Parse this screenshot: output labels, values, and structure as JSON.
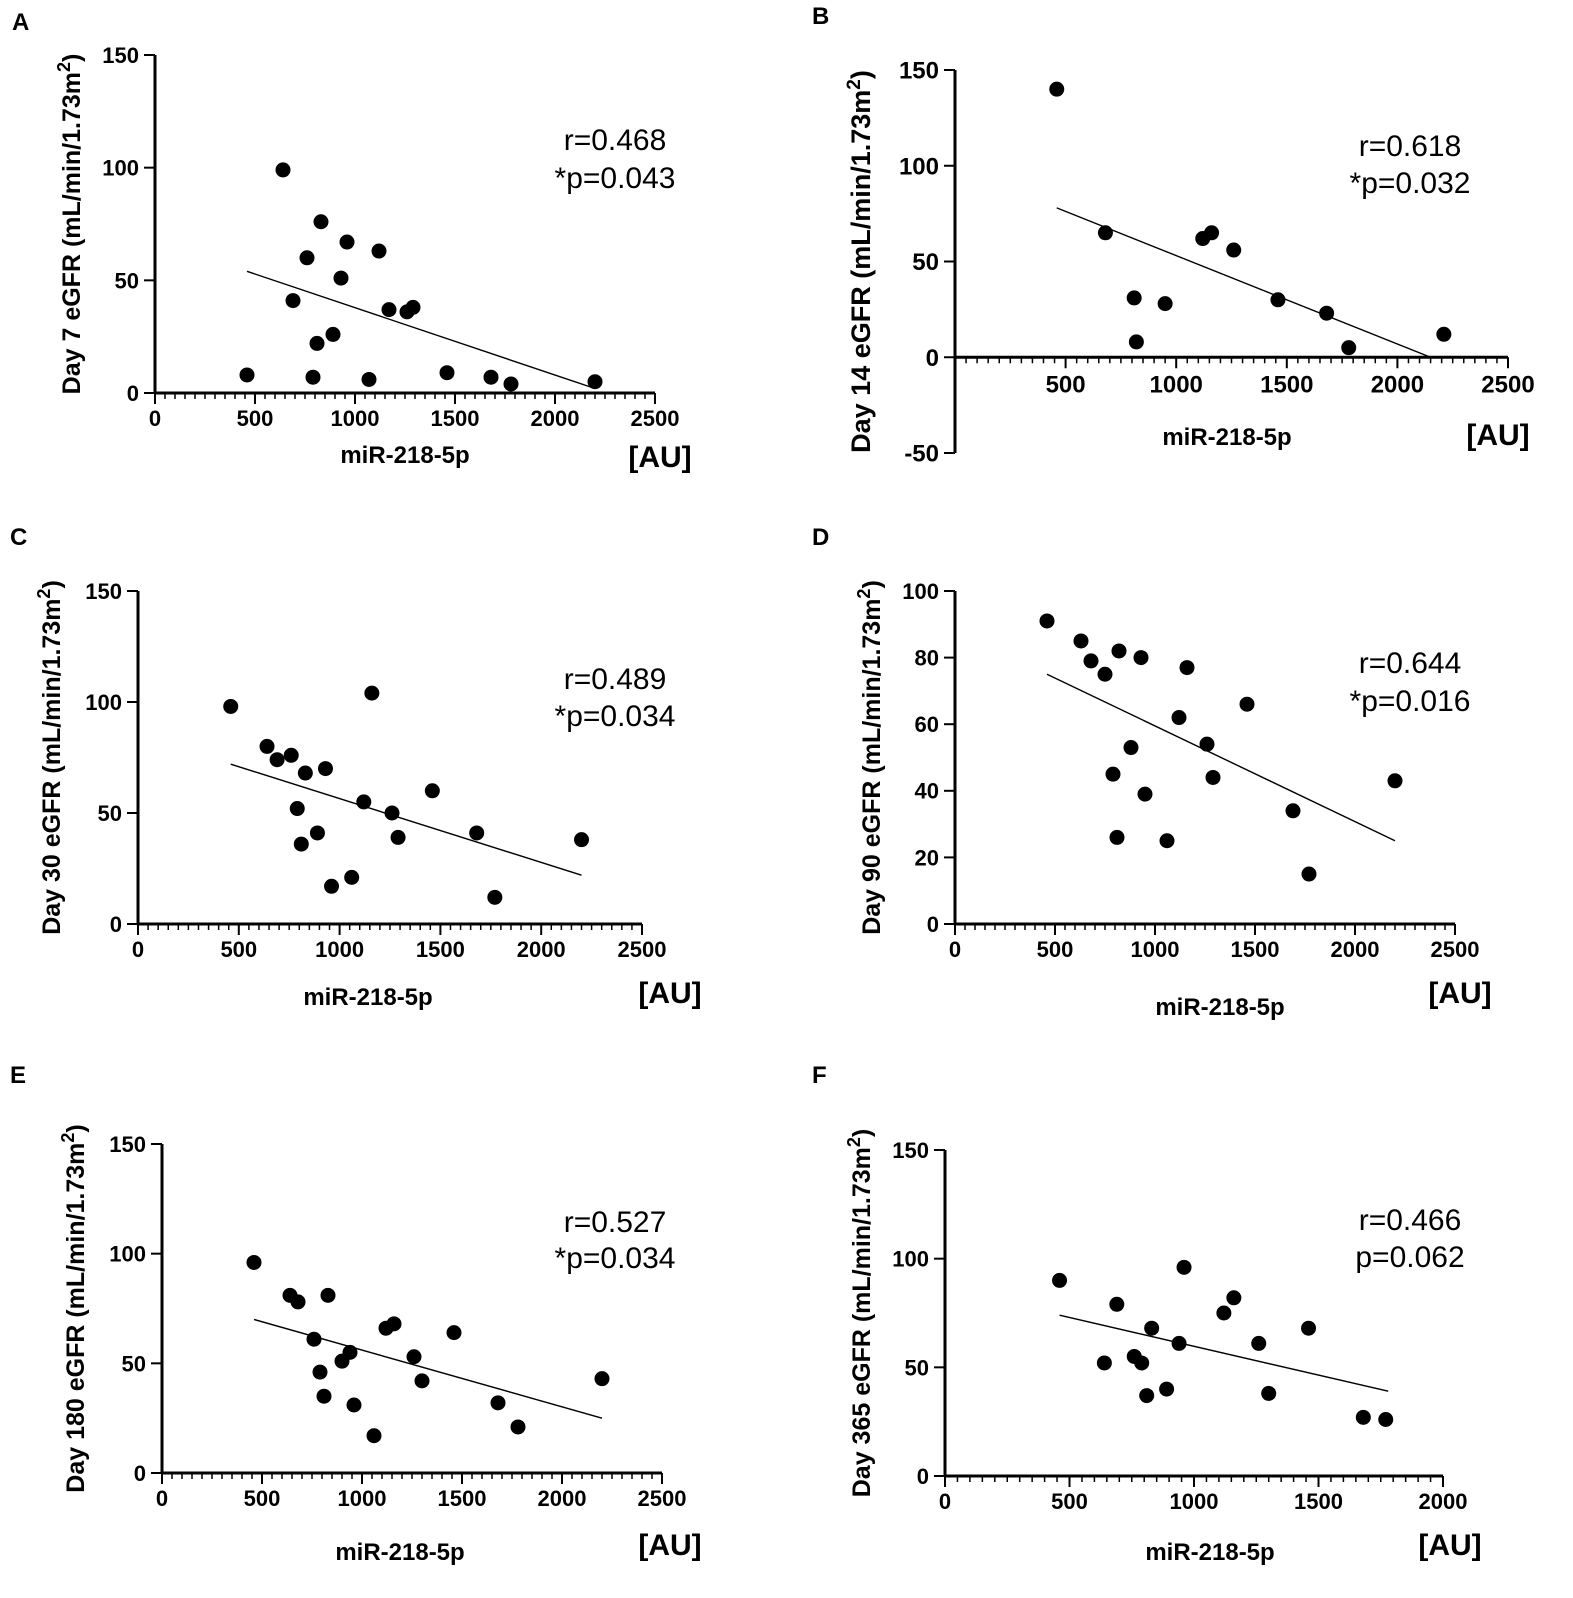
{
  "chart_data": [
    {
      "type": "scatter",
      "panel": "A",
      "ylabel": "Day 7 eGFR (mL/min/1.73m",
      "ylabel_sup": "2",
      "ylabel_close": ")",
      "xlabel": "miR-218-5p",
      "unit": "[AU]",
      "stat_r": "r=0.468",
      "stat_p": "*p=0.043",
      "xlim": [
        0,
        2500
      ],
      "ylim": [
        0,
        150
      ],
      "xticks": [
        0,
        500,
        1000,
        1500,
        2000,
        2500
      ],
      "xtick_labels": [
        "0",
        "500",
        "1000",
        "1500",
        "2000",
        "2500"
      ],
      "yticks": [
        0,
        50,
        100,
        150
      ],
      "ytick_labels": [
        "0",
        "50",
        "100",
        "150"
      ],
      "regression": [
        [
          460,
          54
        ],
        [
          2200,
          2
        ]
      ],
      "points": [
        [
          460,
          8
        ],
        [
          640,
          99
        ],
        [
          690,
          41
        ],
        [
          760,
          60
        ],
        [
          790,
          7
        ],
        [
          810,
          22
        ],
        [
          830,
          76
        ],
        [
          890,
          26
        ],
        [
          930,
          51
        ],
        [
          960,
          67
        ],
        [
          1070,
          6
        ],
        [
          1120,
          63
        ],
        [
          1170,
          37
        ],
        [
          1260,
          36
        ],
        [
          1290,
          38
        ],
        [
          1460,
          9
        ],
        [
          1680,
          7
        ],
        [
          1780,
          4
        ],
        [
          2200,
          5
        ]
      ]
    },
    {
      "type": "scatter",
      "panel": "B",
      "ylabel": "Day 14 eGFR (mL/min/1.73m",
      "ylabel_sup": "2",
      "ylabel_close": ")",
      "xlabel": "miR-218-5p",
      "unit": "[AU]",
      "stat_r": "r=0.618",
      "stat_p": "*p=0.032",
      "xlim": [
        0,
        2500
      ],
      "ylim": [
        -50,
        150
      ],
      "xticks": [
        500,
        1000,
        1500,
        2000,
        2500
      ],
      "xtick_labels": [
        "500",
        "1000",
        "1500",
        "2000",
        "2500"
      ],
      "yticks": [
        -50,
        0,
        50,
        100,
        150
      ],
      "ytick_labels": [
        "-50",
        "0",
        "50",
        "100",
        "150"
      ],
      "regression": [
        [
          460,
          78
        ],
        [
          2150,
          0
        ]
      ],
      "points": [
        [
          460,
          140
        ],
        [
          680,
          65
        ],
        [
          810,
          31
        ],
        [
          820,
          8
        ],
        [
          950,
          28
        ],
        [
          1120,
          62
        ],
        [
          1160,
          65
        ],
        [
          1260,
          56
        ],
        [
          1460,
          30
        ],
        [
          1680,
          23
        ],
        [
          1780,
          5
        ],
        [
          2210,
          12
        ]
      ]
    },
    {
      "type": "scatter",
      "panel": "C",
      "ylabel": "Day 30 eGFR (mL/min/1.73m",
      "ylabel_sup": "2",
      "ylabel_close": ")",
      "xlabel": "miR-218-5p",
      "unit": "[AU]",
      "stat_r": "r=0.489",
      "stat_p": "*p=0.034",
      "xlim": [
        0,
        2500
      ],
      "ylim": [
        0,
        150
      ],
      "xticks": [
        0,
        500,
        1000,
        1500,
        2000,
        2500
      ],
      "xtick_labels": [
        "0",
        "500",
        "1000",
        "1500",
        "2000",
        "2500"
      ],
      "yticks": [
        0,
        50,
        100,
        150
      ],
      "ytick_labels": [
        "0",
        "50",
        "100",
        "150"
      ],
      "regression": [
        [
          460,
          72
        ],
        [
          2200,
          22
        ]
      ],
      "points": [
        [
          460,
          98
        ],
        [
          640,
          80
        ],
        [
          690,
          74
        ],
        [
          760,
          76
        ],
        [
          790,
          52
        ],
        [
          810,
          36
        ],
        [
          830,
          68
        ],
        [
          890,
          41
        ],
        [
          930,
          70
        ],
        [
          960,
          17
        ],
        [
          1060,
          21
        ],
        [
          1120,
          55
        ],
        [
          1160,
          104
        ],
        [
          1260,
          50
        ],
        [
          1290,
          39
        ],
        [
          1460,
          60
        ],
        [
          1680,
          41
        ],
        [
          1770,
          12
        ],
        [
          2200,
          38
        ]
      ]
    },
    {
      "type": "scatter",
      "panel": "D",
      "ylabel": "Day 90 eGFR (mL/min/1.73m",
      "ylabel_sup": "2",
      "ylabel_close": ")",
      "xlabel": "miR-218-5p",
      "unit": "[AU]",
      "stat_r": "r=0.644",
      "stat_p": "*p=0.016",
      "xlim": [
        0,
        2500
      ],
      "ylim": [
        0,
        100
      ],
      "xticks": [
        0,
        500,
        1000,
        1500,
        2000,
        2500
      ],
      "xtick_labels": [
        "0",
        "500",
        "1000",
        "1500",
        "2000",
        "2500"
      ],
      "yticks": [
        0,
        20,
        40,
        60,
        80,
        100
      ],
      "ytick_labels": [
        "0",
        "20",
        "40",
        "60",
        "80",
        "100"
      ],
      "regression": [
        [
          460,
          75
        ],
        [
          2200,
          25
        ]
      ],
      "points": [
        [
          460,
          91
        ],
        [
          630,
          85
        ],
        [
          680,
          79
        ],
        [
          750,
          75
        ],
        [
          790,
          45
        ],
        [
          810,
          26
        ],
        [
          820,
          82
        ],
        [
          880,
          53
        ],
        [
          930,
          80
        ],
        [
          950,
          39
        ],
        [
          1060,
          25
        ],
        [
          1120,
          62
        ],
        [
          1160,
          77
        ],
        [
          1260,
          54
        ],
        [
          1290,
          44
        ],
        [
          1460,
          66
        ],
        [
          1690,
          34
        ],
        [
          1770,
          15
        ],
        [
          2200,
          43
        ]
      ]
    },
    {
      "type": "scatter",
      "panel": "E",
      "ylabel": "Day 180 eGFR (mL/min/1.73m",
      "ylabel_sup": "2",
      "ylabel_close": ")",
      "xlabel": "miR-218-5p",
      "unit": "[AU]",
      "stat_r": "r=0.527",
      "stat_p": "*p=0.034",
      "xlim": [
        0,
        2500
      ],
      "ylim": [
        0,
        150
      ],
      "xticks": [
        0,
        500,
        1000,
        1500,
        2000,
        2500
      ],
      "xtick_labels": [
        "0",
        "500",
        "1000",
        "1500",
        "2000",
        "2500"
      ],
      "yticks": [
        0,
        50,
        100,
        150
      ],
      "ytick_labels": [
        "0",
        "50",
        "100",
        "150"
      ],
      "regression": [
        [
          460,
          70
        ],
        [
          2200,
          25
        ]
      ],
      "points": [
        [
          460,
          96
        ],
        [
          640,
          81
        ],
        [
          680,
          78
        ],
        [
          760,
          61
        ],
        [
          790,
          46
        ],
        [
          810,
          35
        ],
        [
          830,
          81
        ],
        [
          900,
          51
        ],
        [
          940,
          55
        ],
        [
          960,
          31
        ],
        [
          1060,
          17
        ],
        [
          1120,
          66
        ],
        [
          1160,
          68
        ],
        [
          1260,
          53
        ],
        [
          1300,
          42
        ],
        [
          1460,
          64
        ],
        [
          1680,
          32
        ],
        [
          1780,
          21
        ],
        [
          2200,
          43
        ]
      ]
    },
    {
      "type": "scatter",
      "panel": "F",
      "ylabel": "Day 365 eGFR (mL/min/1.73m",
      "ylabel_sup": "2",
      "ylabel_close": ")",
      "xlabel": "miR-218-5p",
      "unit": "[AU]",
      "stat_r": "r=0.466",
      "stat_p": "p=0.062",
      "xlim": [
        0,
        2000
      ],
      "ylim": [
        0,
        150
      ],
      "xticks": [
        0,
        500,
        1000,
        1500,
        2000
      ],
      "xtick_labels": [
        "0",
        "500",
        "1000",
        "1500",
        "2000"
      ],
      "yticks": [
        0,
        50,
        100,
        150
      ],
      "ytick_labels": [
        "0",
        "50",
        "100",
        "150"
      ],
      "regression": [
        [
          460,
          74
        ],
        [
          1780,
          39
        ]
      ],
      "points": [
        [
          460,
          90
        ],
        [
          640,
          52
        ],
        [
          690,
          79
        ],
        [
          760,
          55
        ],
        [
          790,
          52
        ],
        [
          810,
          37
        ],
        [
          830,
          68
        ],
        [
          890,
          40
        ],
        [
          940,
          61
        ],
        [
          960,
          96
        ],
        [
          1120,
          75
        ],
        [
          1160,
          82
        ],
        [
          1260,
          61
        ],
        [
          1300,
          38
        ],
        [
          1460,
          68
        ],
        [
          1680,
          27
        ],
        [
          1770,
          26
        ]
      ]
    }
  ]
}
